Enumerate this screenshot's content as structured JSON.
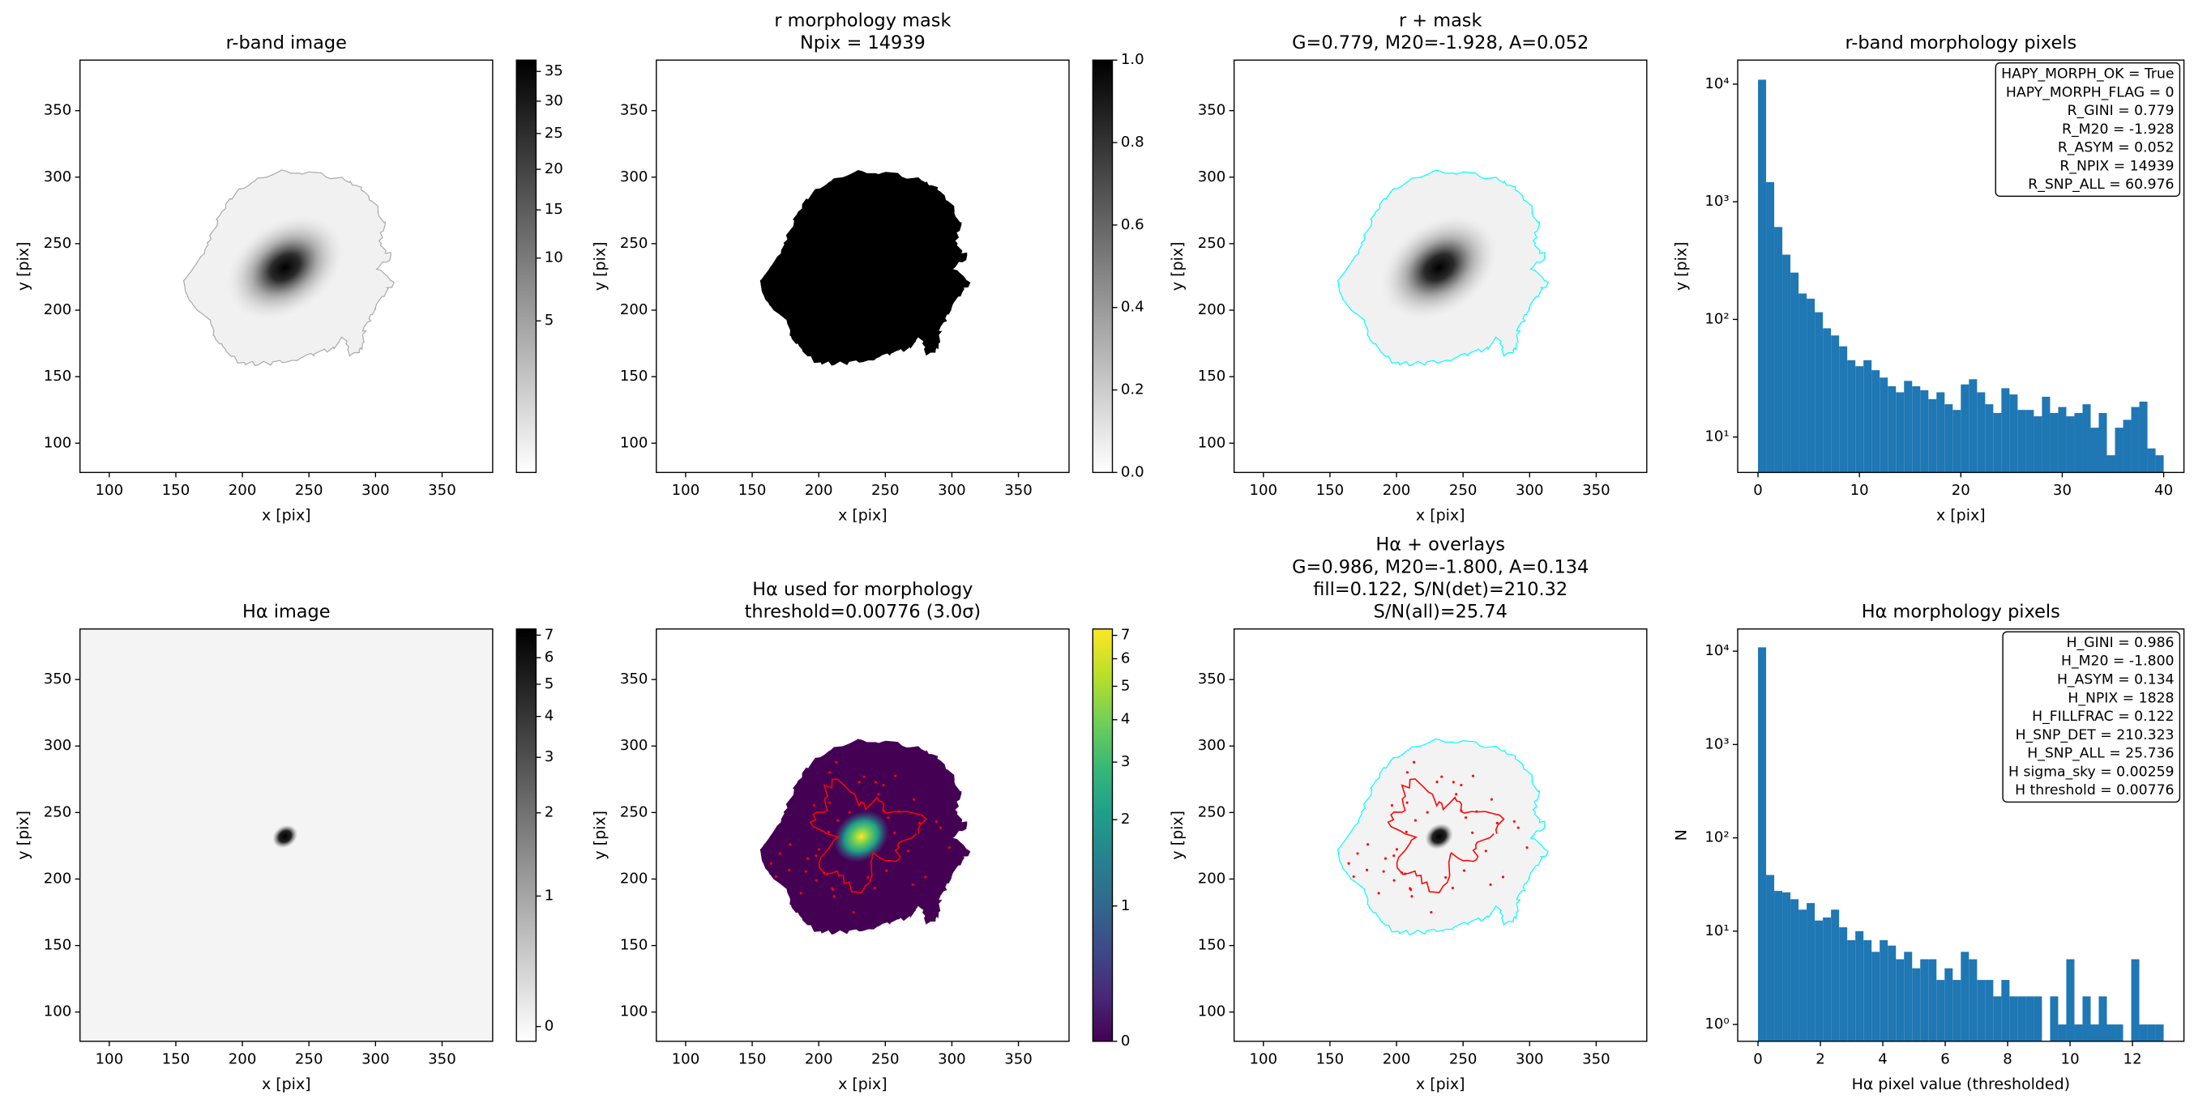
{
  "chart_data": [
    {
      "type": "image",
      "title": [
        "r-band image"
      ],
      "x_label": "x [pix]",
      "y_label": "y [pix]",
      "xlim": [
        78,
        388
      ],
      "ylim": [
        78,
        388
      ],
      "xticks": [
        100,
        150,
        200,
        250,
        300,
        350
      ],
      "yticks": [
        100,
        150,
        200,
        250,
        300,
        350
      ],
      "colorbar": {
        "cmap": "gray_r",
        "scale": "sqrt",
        "lim": [
          0,
          37
        ],
        "ticks": [
          5,
          10,
          15,
          20,
          25,
          30,
          35
        ]
      }
    },
    {
      "type": "image",
      "title": [
        "r morphology mask",
        "Npix = 14939"
      ],
      "x_label": "x [pix]",
      "y_label": "y [pix]",
      "xlim": [
        78,
        388
      ],
      "ylim": [
        78,
        388
      ],
      "xticks": [
        100,
        150,
        200,
        250,
        300,
        350
      ],
      "yticks": [
        100,
        150,
        200,
        250,
        300,
        350
      ],
      "colorbar": {
        "cmap": "gray_r",
        "scale": "linear",
        "lim": [
          0,
          1
        ],
        "ticks": [
          {
            "value": 0,
            "label": "0.0"
          },
          0.2,
          0.4,
          0.6,
          0.8,
          {
            "value": 1,
            "label": "1.0"
          }
        ]
      }
    },
    {
      "type": "image",
      "title": [
        "r + mask",
        "G=0.779, M20=-1.928, A=0.052"
      ],
      "x_label": "x [pix]",
      "y_label": "y [pix]",
      "xlim": [
        78,
        388
      ],
      "ylim": [
        78,
        388
      ],
      "xticks": [
        100,
        150,
        200,
        250,
        300,
        350
      ],
      "yticks": [
        100,
        150,
        200,
        250,
        300,
        350
      ]
    },
    {
      "type": "histogram",
      "title": [
        "r-band morphology pixels"
      ],
      "x_label": "x [pix]",
      "y_label": "y [pix]",
      "color": "#1f77b4",
      "bins": [
        0,
        0.8,
        1.6,
        2.4,
        3.2,
        4,
        4.8,
        5.6,
        6.4,
        7.2,
        8,
        8.8,
        9.6,
        10.4,
        11.2,
        12,
        12.8,
        13.6,
        14.4,
        15.2,
        16,
        16.8,
        17.6,
        18.4,
        19.2,
        20,
        20.8,
        21.6,
        22.4,
        23.2,
        24,
        24.8,
        25.6,
        26.4,
        27.2,
        28,
        28.8,
        29.6,
        30.4,
        31.2,
        32,
        32.8,
        33.6,
        34.4,
        35.2,
        36,
        36.8,
        37.6,
        38.4,
        39.2,
        40
      ],
      "values": [
        10900,
        1470,
        610,
        355,
        250,
        166,
        150,
        115,
        84,
        73,
        59,
        45,
        40,
        45,
        37,
        32,
        27,
        24,
        30,
        27,
        25,
        21,
        24,
        19,
        17,
        28,
        31,
        24,
        19,
        16,
        26,
        23,
        17,
        17,
        15,
        22,
        16,
        18,
        15,
        16,
        19,
        12,
        16,
        7,
        12,
        14,
        18,
        20,
        8,
        7
      ],
      "xlim": [
        -2,
        42
      ],
      "ylim": [
        5,
        16000
      ],
      "log_y": true,
      "xticks": [
        0,
        10,
        20,
        30,
        40
      ],
      "yticks": [
        {
          "value": 10,
          "label": "10¹"
        },
        {
          "value": 100,
          "label": "10²"
        },
        {
          "value": 1000,
          "label": "10³"
        },
        {
          "value": 10000,
          "label": "10⁴"
        }
      ],
      "annotation_loc": "upper right",
      "annotations": [
        "HAPY_MORPH_OK = True",
        "HAPY_MORPH_FLAG = 0",
        "R_GINI = 0.779",
        "R_M20 = -1.928",
        "R_ASYM = 0.052",
        "R_NPIX = 14939",
        "R_SNP_ALL = 60.976"
      ]
    },
    {
      "type": "image",
      "title": [
        "Hα image"
      ],
      "x_label": "x [pix]",
      "y_label": "y [pix]",
      "xlim": [
        78,
        388
      ],
      "ylim": [
        78,
        388
      ],
      "xticks": [
        100,
        150,
        200,
        250,
        300,
        350
      ],
      "yticks": [
        100,
        150,
        200,
        250,
        300,
        350
      ],
      "colorbar": {
        "cmap": "gray_r",
        "scale": "asinh",
        "lim": [
          -0.1,
          7.3
        ],
        "ticks": [
          0,
          1,
          2,
          3,
          4,
          5,
          6,
          7
        ]
      }
    },
    {
      "type": "image",
      "title": [
        "Hα used for morphology",
        "threshold=0.00776 (3.0σ)"
      ],
      "x_label": "x [pix]",
      "y_label": "y [pix]",
      "xlim": [
        78,
        388
      ],
      "ylim": [
        78,
        388
      ],
      "xticks": [
        100,
        150,
        200,
        250,
        300,
        350
      ],
      "yticks": [
        100,
        150,
        200,
        250,
        300,
        350
      ],
      "colorbar": {
        "cmap": "viridis",
        "scale": "asinh",
        "lim": [
          0,
          7.3
        ],
        "ticks": [
          0,
          1,
          2,
          3,
          4,
          5,
          6,
          7
        ]
      }
    },
    {
      "type": "image",
      "title": [
        "Hα + overlays",
        "G=0.986, M20=-1.800, A=0.134",
        "fill=0.122, S/N(det)=210.32",
        "S/N(all)=25.74"
      ],
      "x_label": "x [pix]",
      "y_label": "y [pix]",
      "xlim": [
        78,
        388
      ],
      "ylim": [
        78,
        388
      ],
      "xticks": [
        100,
        150,
        200,
        250,
        300,
        350
      ],
      "yticks": [
        100,
        150,
        200,
        250,
        300,
        350
      ]
    },
    {
      "type": "histogram",
      "title": [
        "Hα morphology pixels"
      ],
      "x_label": "Hα pixel value (thresholded)",
      "y_label": "N",
      "color": "#1f77b4",
      "bins": [
        0,
        0.26,
        0.52,
        0.78,
        1.04,
        1.3,
        1.56,
        1.82,
        2.08,
        2.34,
        2.6,
        2.86,
        3.12,
        3.38,
        3.64,
        3.9,
        4.16,
        4.42,
        4.68,
        4.94,
        5.2,
        5.46,
        5.72,
        5.98,
        6.24,
        6.5,
        6.76,
        7.02,
        7.28,
        7.54,
        7.8,
        8.06,
        8.32,
        8.58,
        8.84,
        9.1,
        9.36,
        9.62,
        9.88,
        10.14,
        10.4,
        10.66,
        10.92,
        11.18,
        11.44,
        11.7,
        11.96,
        12.22,
        12.48,
        12.74,
        13
      ],
      "values": [
        11000,
        40,
        27,
        26,
        22,
        17,
        20,
        13,
        14,
        17,
        11,
        8,
        10,
        8,
        6,
        8,
        7,
        5,
        6,
        4,
        5,
        5,
        3,
        4,
        3,
        6,
        5,
        3,
        3,
        2,
        3,
        2,
        2,
        2,
        2,
        0,
        2,
        1,
        5,
        1,
        2,
        1,
        2,
        1,
        1,
        0,
        5,
        1,
        1,
        1
      ],
      "xlim": [
        -0.65,
        13.65
      ],
      "ylim": [
        0.66,
        17300
      ],
      "log_y": true,
      "xticks": [
        0,
        2,
        4,
        6,
        8,
        10,
        12
      ],
      "yticks": [
        {
          "value": 1,
          "label": "10⁰"
        },
        {
          "value": 10,
          "label": "10¹"
        },
        {
          "value": 100,
          "label": "10²"
        },
        {
          "value": 1000,
          "label": "10³"
        },
        {
          "value": 10000,
          "label": "10⁴"
        }
      ],
      "annotation_loc": "upper right",
      "annotations": [
        "H_GINI = 0.986",
        "H_M20 = -1.800",
        "H_ASYM = 0.134",
        "H_NPIX = 1828",
        "H_FILLFRAC = 0.122",
        "H_SNP_DET = 210.323",
        "H_SNP_ALL = 25.736",
        "H sigma_sky = 0.00259",
        "H threshold = 0.00776"
      ]
    }
  ]
}
